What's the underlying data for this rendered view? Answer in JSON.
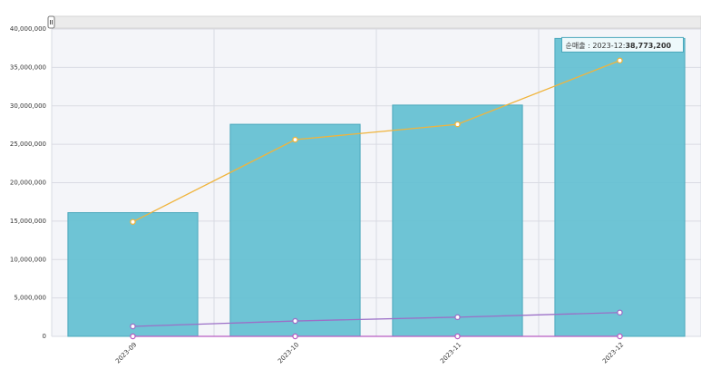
{
  "chart_data": {
    "type": "bar",
    "categories": [
      "2023-09",
      "2023-10",
      "2023-11",
      "2023-12"
    ],
    "series": [
      {
        "name": "순매출",
        "type": "bar",
        "color": "#66c1d3",
        "values": [
          16100000,
          27600000,
          30100000,
          38773200
        ],
        "value_labels": [
          null,
          null,
          null,
          "38,773,200"
        ]
      },
      {
        "type": "line",
        "color": "#f0b43c",
        "values": [
          14900000,
          25600000,
          27600000,
          35900000
        ]
      },
      {
        "type": "line",
        "color": "#9b6fc7",
        "values": [
          1300000,
          2000000,
          2500000,
          3100000
        ]
      },
      {
        "type": "line",
        "color": "#b85cc2",
        "values": [
          0,
          0,
          0,
          0
        ]
      }
    ],
    "tooltip": "순매출 : 2023-12:",
    "ylim": [
      0,
      40000000
    ],
    "yticks": [
      0,
      {
        "value": 5000000,
        "label": "5,000,000"
      },
      {
        "value": 10000000,
        "label": "10,000,000"
      },
      {
        "value": 15000000,
        "label": "15,000,000"
      },
      {
        "value": 20000000,
        "label": "20,000,000"
      },
      {
        "value": 25000000,
        "label": "25,000,000"
      },
      {
        "value": 30000000,
        "label": "30,000,000"
      },
      {
        "value": 35000000,
        "label": "35,000,000"
      },
      {
        "value": 40000000,
        "label": "40,000,000"
      }
    ],
    "grid": true
  }
}
